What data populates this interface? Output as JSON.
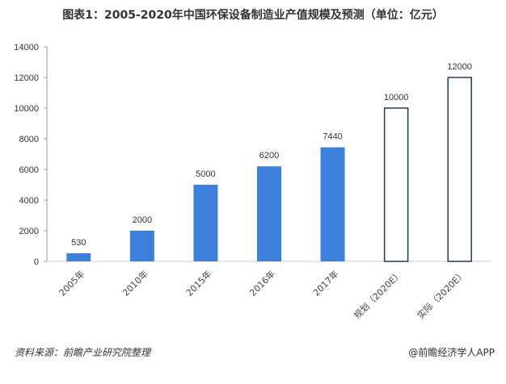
{
  "chart_data": {
    "type": "bar",
    "title": "图表1：2005-2020年中国环保设备制造业产值规模及预测（单位：亿元）",
    "categories": [
      "2005年",
      "2010年",
      "2015年",
      "2016年",
      "2017年",
      "规划（2020E）",
      "实际（2020E）"
    ],
    "values": [
      530,
      2000,
      5000,
      6200,
      7440,
      10000,
      12000
    ],
    "data_labels": [
      "530",
      "2000",
      "5000",
      "6200",
      "7440",
      "10000",
      "12000"
    ],
    "bar_styles": [
      "filled",
      "filled",
      "filled",
      "filled",
      "filled",
      "outline",
      "outline"
    ],
    "ylim": [
      0,
      14000
    ],
    "yticks": [
      "0",
      "2000",
      "4000",
      "6000",
      "8000",
      "10000",
      "12000",
      "14000"
    ],
    "xlabel": "",
    "ylabel": "",
    "grid": false,
    "legend": "none",
    "colors": {
      "bar": "#3f7fdc",
      "outline": "#1f3864"
    }
  },
  "footer": {
    "source": "资料来源：前瞻产业研究院整理",
    "credit": "@前瞻经济学人APP"
  }
}
